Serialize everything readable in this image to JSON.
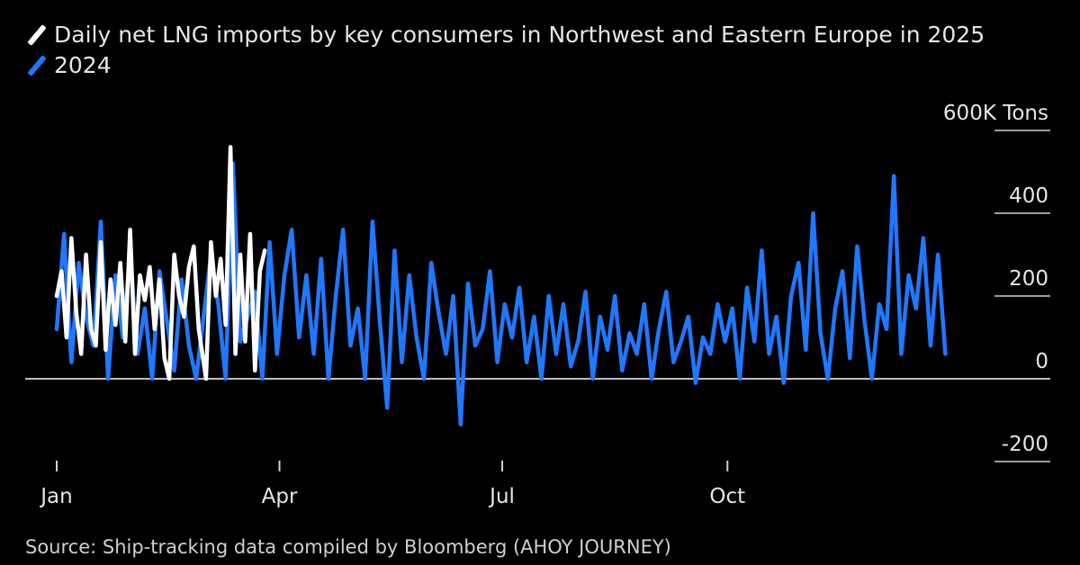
{
  "chart_data": {
    "type": "line",
    "title": "",
    "ylabel": "",
    "y_unit": "600K Tons",
    "ylim": [
      -200,
      600
    ],
    "y_ticks": [
      {
        "value": 600,
        "label": "600K Tons"
      },
      {
        "value": 400,
        "label": "400"
      },
      {
        "value": 200,
        "label": "200"
      },
      {
        "value": 0,
        "label": "0"
      },
      {
        "value": -200,
        "label": "-200"
      }
    ],
    "x_ticks": [
      {
        "date": "01-01",
        "label": "Jan"
      },
      {
        "date": "04-01",
        "label": "Apr"
      },
      {
        "date": "07-01",
        "label": "Jul"
      },
      {
        "date": "10-01",
        "label": "Oct"
      }
    ],
    "grid": "right-side short tick lines",
    "legend_placement": "top-left",
    "series": [
      {
        "name": "2024",
        "color": "#1f78ff",
        "dates": [
          "01-01",
          "01-04",
          "01-07",
          "01-10",
          "01-13",
          "01-16",
          "01-19",
          "01-22",
          "01-25",
          "01-28",
          "01-31",
          "02-03",
          "02-06",
          "02-09",
          "02-12",
          "02-15",
          "02-18",
          "02-21",
          "02-24",
          "02-27",
          "03-01",
          "03-04",
          "03-07",
          "03-10",
          "03-13",
          "03-16",
          "03-19",
          "03-22",
          "03-25",
          "03-28",
          "03-31",
          "04-03",
          "04-06",
          "04-09",
          "04-12",
          "04-15",
          "04-18",
          "04-21",
          "04-24",
          "04-27",
          "04-30",
          "05-03",
          "05-06",
          "05-09",
          "05-12",
          "05-15",
          "05-18",
          "05-21",
          "05-24",
          "05-27",
          "05-30",
          "06-02",
          "06-05",
          "06-08",
          "06-11",
          "06-14",
          "06-17",
          "06-20",
          "06-23",
          "06-26",
          "06-29",
          "07-02",
          "07-05",
          "07-08",
          "07-11",
          "07-14",
          "07-17",
          "07-20",
          "07-23",
          "07-26",
          "07-29",
          "08-01",
          "08-04",
          "08-07",
          "08-10",
          "08-13",
          "08-16",
          "08-19",
          "08-22",
          "08-25",
          "08-28",
          "08-31",
          "09-03",
          "09-06",
          "09-09",
          "09-12",
          "09-15",
          "09-18",
          "09-21",
          "09-24",
          "09-27",
          "09-30",
          "10-03",
          "10-06",
          "10-09",
          "10-12",
          "10-15",
          "10-18",
          "10-21",
          "10-24",
          "10-27",
          "10-30",
          "11-02",
          "11-05",
          "11-08",
          "11-11",
          "11-14",
          "11-17",
          "11-20",
          "11-23",
          "11-26",
          "11-29",
          "12-02",
          "12-05",
          "12-08",
          "12-11",
          "12-14",
          "12-17",
          "12-20",
          "12-23",
          "12-26",
          "12-29"
        ],
        "values": [
          120,
          350,
          40,
          280,
          150,
          80,
          380,
          0,
          250,
          100,
          300,
          60,
          170,
          0,
          260,
          140,
          20,
          240,
          80,
          0,
          150,
          300,
          180,
          0,
          520,
          90,
          150,
          210,
          0,
          330,
          60,
          250,
          360,
          100,
          250,
          60,
          290,
          0,
          200,
          360,
          80,
          170,
          0,
          380,
          140,
          -70,
          310,
          40,
          250,
          100,
          0,
          280,
          160,
          60,
          200,
          -110,
          230,
          80,
          120,
          260,
          40,
          180,
          100,
          220,
          40,
          150,
          0,
          200,
          60,
          180,
          30,
          90,
          210,
          0,
          150,
          70,
          200,
          20,
          110,
          60,
          180,
          0,
          120,
          210,
          40,
          90,
          150,
          -10,
          100,
          60,
          180,
          90,
          170,
          0,
          220,
          90,
          310,
          60,
          150,
          -10,
          200,
          280,
          70,
          400,
          110,
          0,
          170,
          260,
          50,
          320,
          140,
          0,
          180,
          120,
          490,
          60,
          250,
          170,
          340,
          80,
          300,
          60
        ]
      },
      {
        "name": "Daily net LNG imports by key consumers in Northwest and Eastern Europe in 2025",
        "color": "#ffffff",
        "dates": [
          "01-01",
          "01-03",
          "01-05",
          "01-07",
          "01-09",
          "01-11",
          "01-13",
          "01-15",
          "01-17",
          "01-19",
          "01-21",
          "01-23",
          "01-25",
          "01-27",
          "01-29",
          "01-31",
          "02-02",
          "02-04",
          "02-06",
          "02-08",
          "02-10",
          "02-12",
          "02-14",
          "02-16",
          "02-18",
          "02-20",
          "02-22",
          "02-24",
          "02-26",
          "02-28",
          "03-02",
          "03-04",
          "03-06",
          "03-08",
          "03-10",
          "03-12",
          "03-14",
          "03-16",
          "03-18",
          "03-20",
          "03-22",
          "03-24",
          "03-26"
        ],
        "values": [
          200,
          260,
          100,
          340,
          160,
          60,
          300,
          120,
          80,
          330,
          70,
          240,
          130,
          280,
          90,
          360,
          60,
          250,
          190,
          270,
          120,
          240,
          50,
          0,
          300,
          200,
          150,
          270,
          320,
          120,
          0,
          330,
          200,
          290,
          130,
          560,
          60,
          300,
          90,
          350,
          20,
          260,
          310
        ]
      }
    ]
  },
  "legend": {
    "items": [
      {
        "label": "Daily net LNG imports by key consumers in Northwest and Eastern Europe in 2025",
        "color": "#ffffff"
      },
      {
        "label": "2024",
        "color": "#1f78ff"
      }
    ]
  },
  "source": "Source: Ship-tracking data compiled by Bloomberg (AHOY JOURNEY)"
}
